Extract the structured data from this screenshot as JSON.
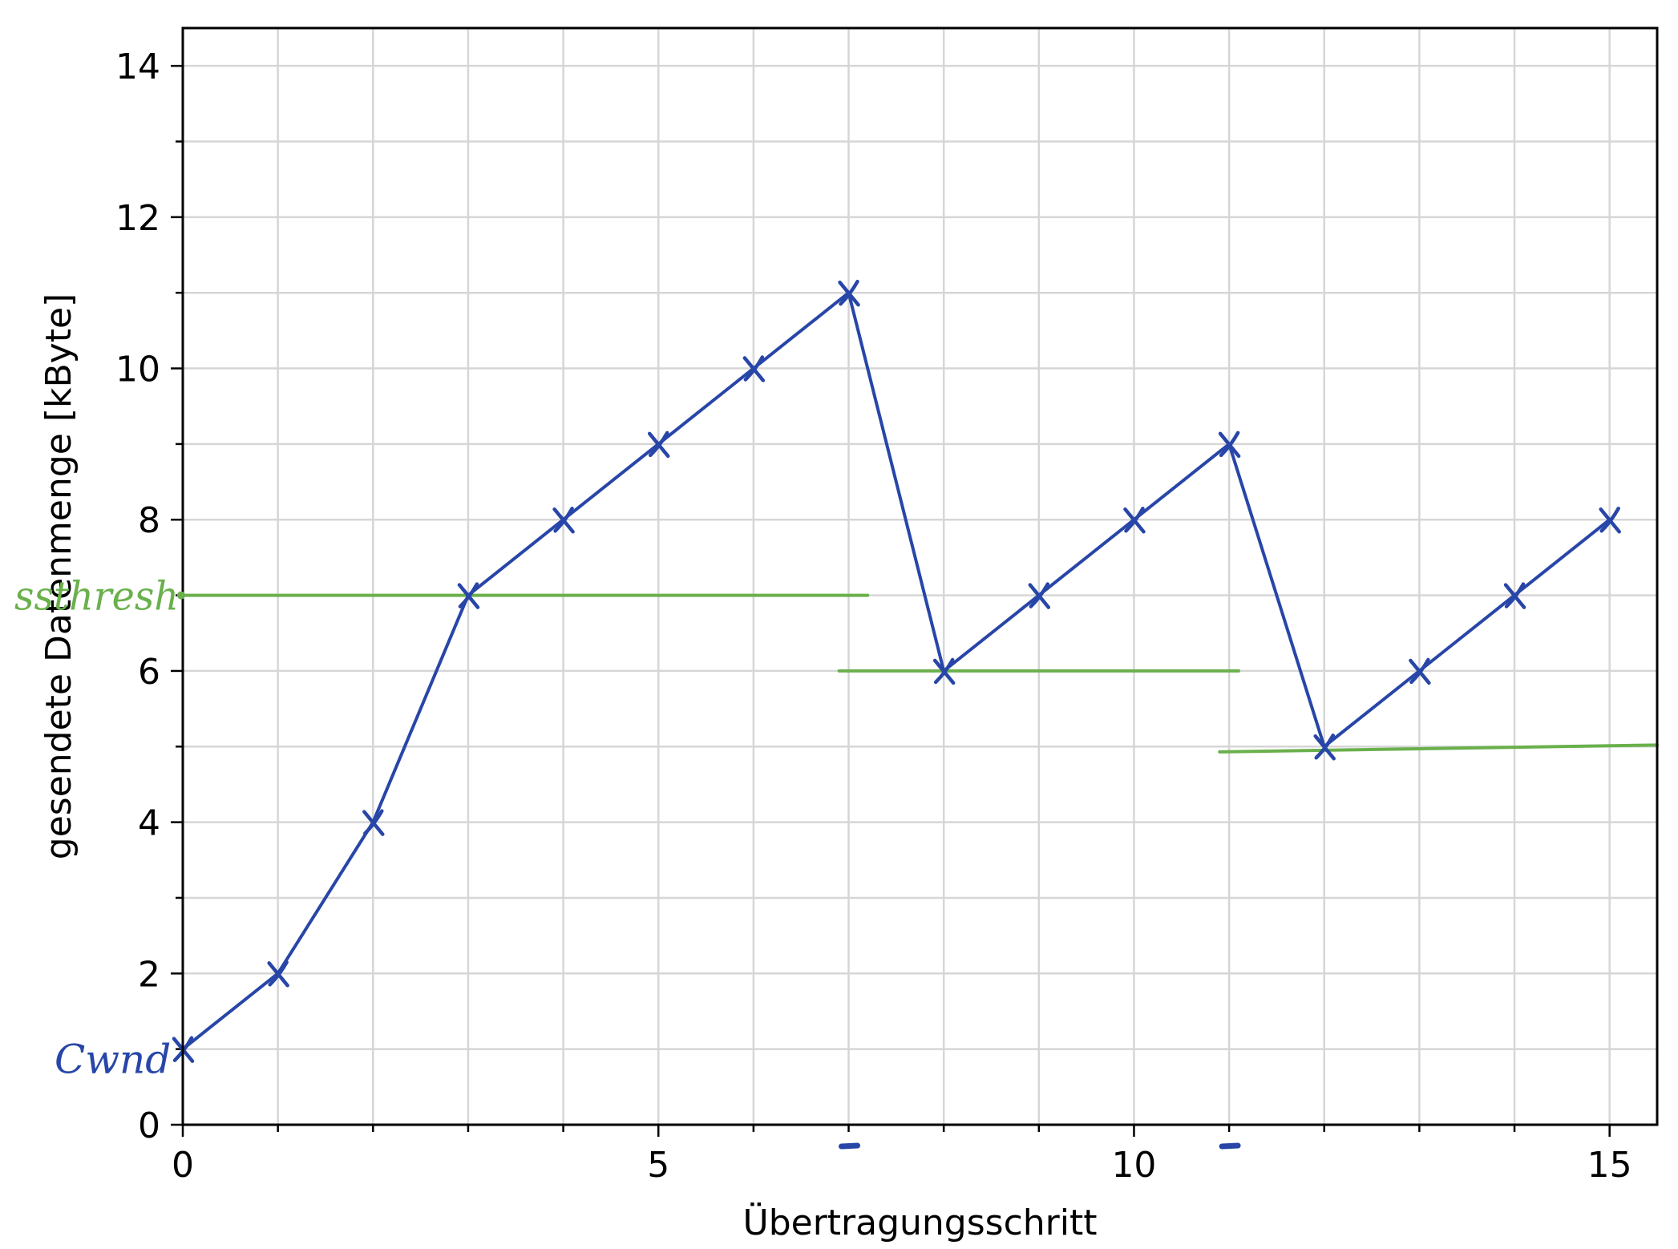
{
  "chart_data": {
    "type": "line",
    "xlabel": "Übertragungsschritt",
    "ylabel": "gesendete Datenmenge [kByte]",
    "xlim": [
      0,
      15.5
    ],
    "ylim": [
      0,
      14.5
    ],
    "x_major_ticks": [
      0,
      5,
      10,
      15
    ],
    "y_major_ticks": [
      0,
      2,
      4,
      6,
      8,
      10,
      12,
      14
    ],
    "grid": true,
    "series": [
      {
        "name": "cwnd",
        "color": "#2846a8",
        "x": [
          0,
          1,
          2,
          3,
          4,
          5,
          6,
          7,
          8,
          9,
          10,
          11,
          12,
          13,
          14,
          15
        ],
        "y": [
          1,
          2,
          4,
          7,
          8,
          9,
          10,
          11,
          6,
          7,
          8,
          9,
          5,
          6,
          7,
          8
        ]
      }
    ],
    "ssthresh_segments": [
      {
        "x": [
          0,
          7.2
        ],
        "y": [
          7,
          7
        ]
      },
      {
        "x": [
          6.9,
          11.1
        ],
        "y": [
          6,
          6
        ]
      },
      {
        "x": [
          10.9,
          15.5
        ],
        "y": [
          4.93,
          5.02
        ]
      }
    ],
    "ssthresh_color": "#6ab04c",
    "annotations": {
      "cwnd": "Cwnd",
      "ssthresh": "ssthresh"
    },
    "x_marks": [
      7,
      11
    ]
  }
}
